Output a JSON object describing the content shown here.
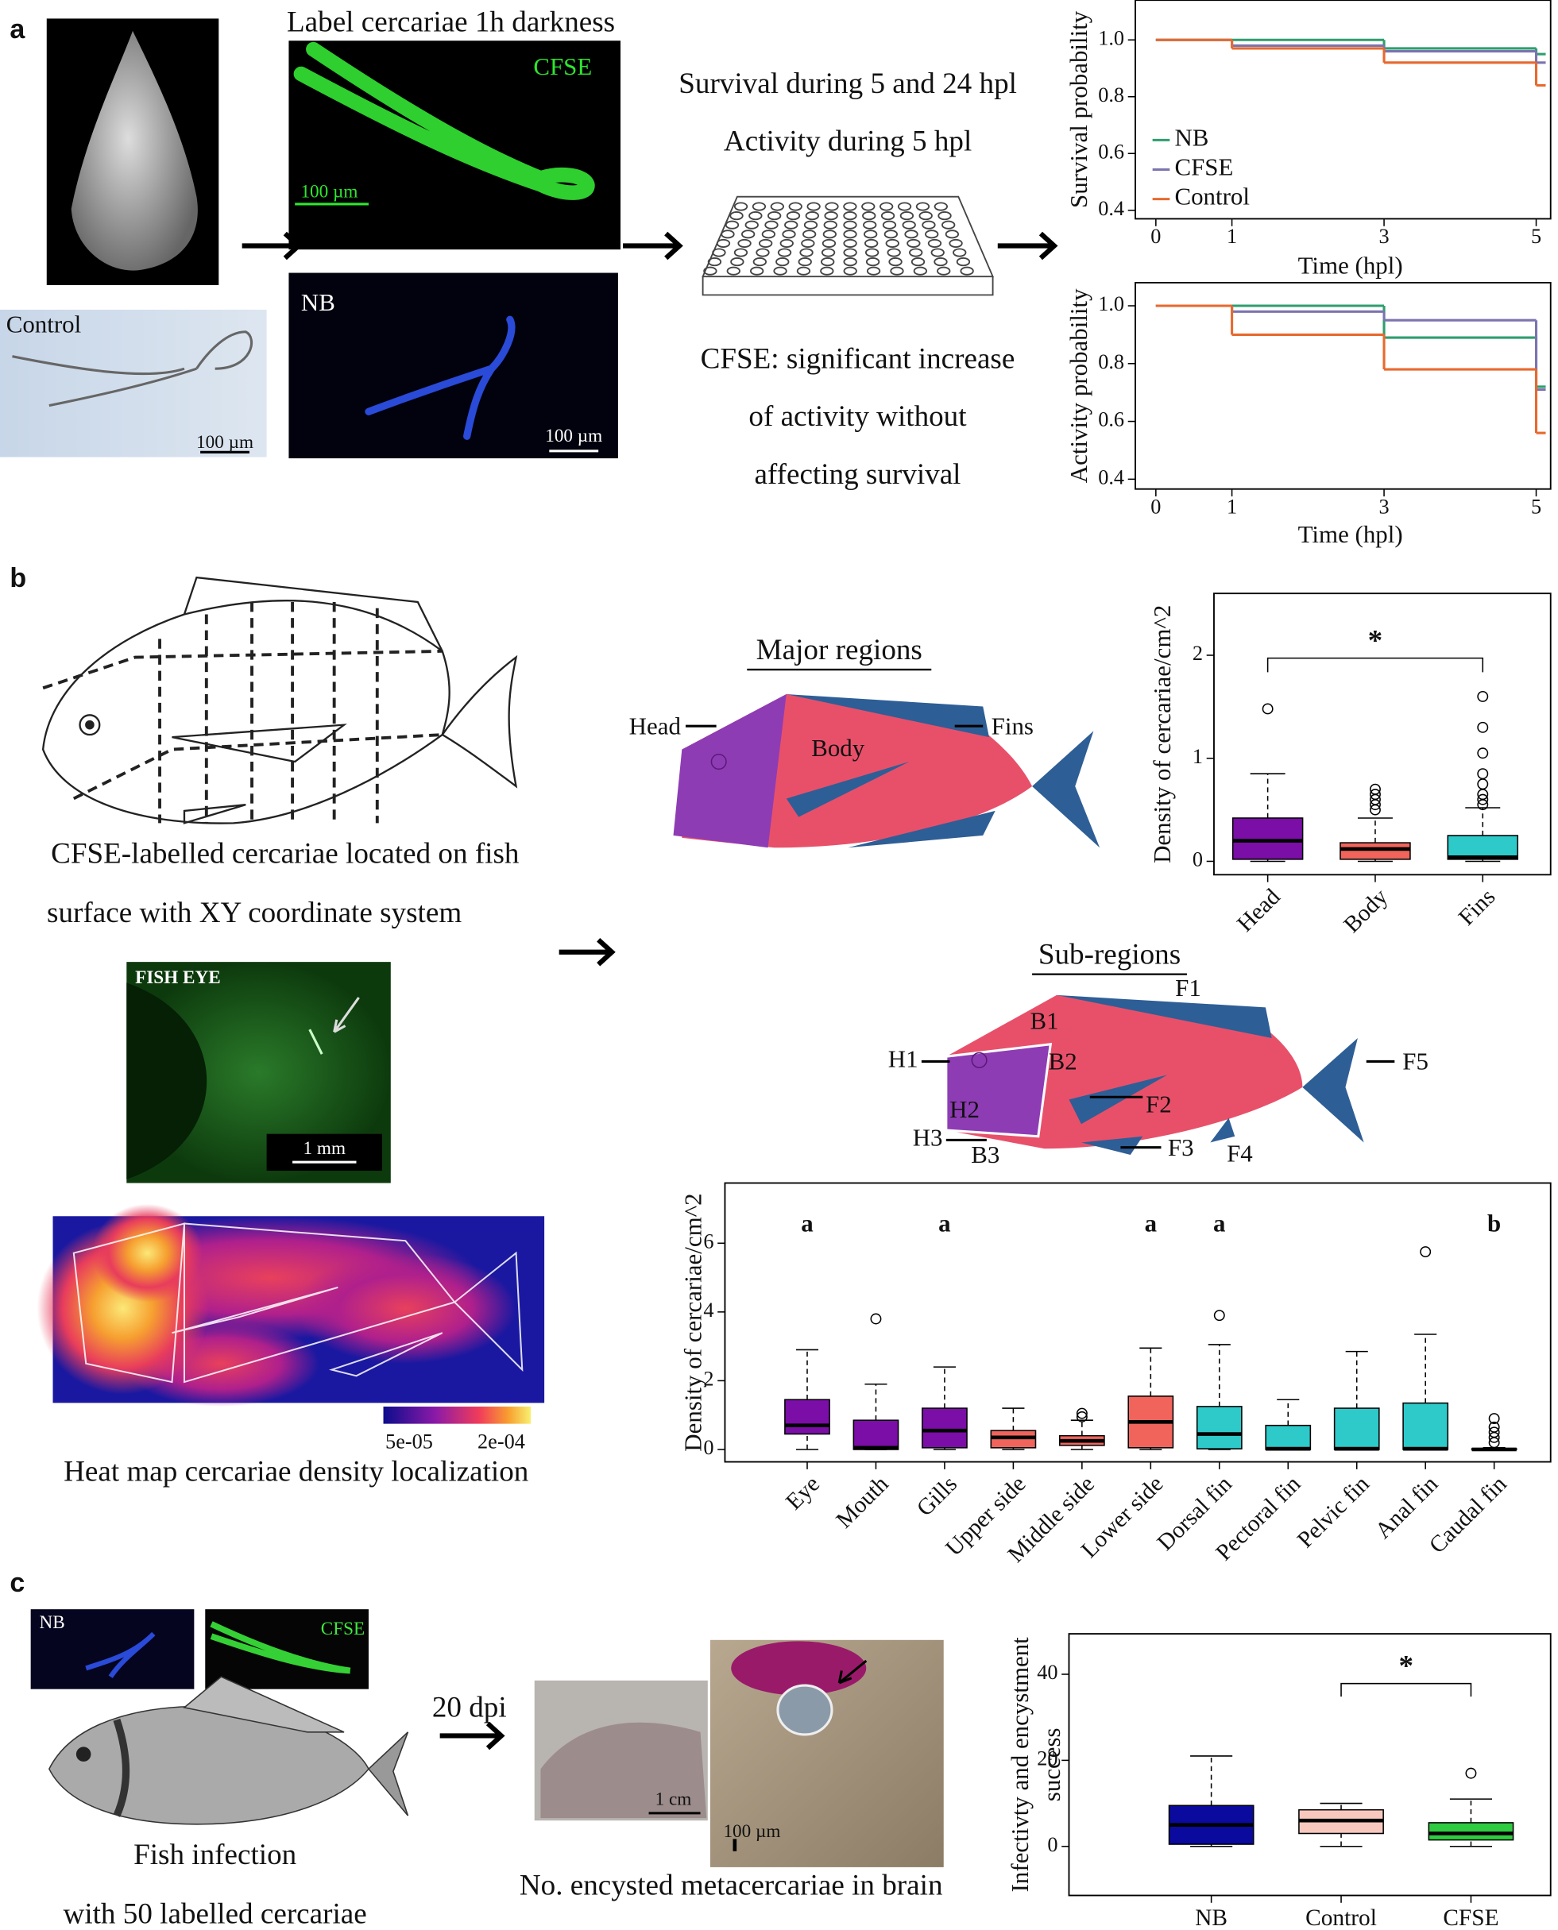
{
  "panel_labels": {
    "a": "a",
    "b": "b",
    "c": "c"
  },
  "panel_a": {
    "title": "Label cercariae 1h darkness",
    "cfse_tag": "CFSE",
    "nb_tag": "NB",
    "control_tag": "Control",
    "scale_cfse": "100 µm",
    "scale_nb": "100 µm",
    "scale_control": "100 µm",
    "assay_lines": [
      "Survival during 5 and 24 hpl",
      "Activity during 5 hpl"
    ],
    "result_lines": [
      "CFSE: significant increase",
      "of activity without",
      "affecting survival"
    ]
  },
  "panel_b": {
    "caption_lines": [
      "CFSE-labelled cercariae located on fish",
      "surface with XY coordinate system"
    ],
    "eye_tag": "FISH EYE",
    "eye_scale": "1 mm",
    "colorbar_ticks": [
      "5e-05",
      "2e-04"
    ],
    "heatmap_caption": "Heat map cercariae density localization",
    "major_title": "Major regions",
    "major_labels": [
      "Head",
      "Body",
      "Fins"
    ],
    "sub_title": "Sub-regions",
    "sub_labels": [
      "H1",
      "H2",
      "H3",
      "B1",
      "B2",
      "B3",
      "F1",
      "F2",
      "F3",
      "F4",
      "F5"
    ]
  },
  "panel_c": {
    "nb_tag": "NB",
    "cfse_tag": "CFSE",
    "arrow_label": "20 dpi",
    "scale_fish": "1 cm",
    "scale_brain": "100 µm",
    "caption_left": [
      "Fish infection",
      "with 50 labelled cercariae"
    ],
    "caption_mid": "No. encysted metacercariae in brain"
  },
  "chart_data": [
    {
      "type": "line",
      "step": "post",
      "ylabel": "Survival probability",
      "xlabel": "Time (hpl)",
      "x": [
        0,
        1,
        3,
        5
      ],
      "xlim": [
        -0.27,
        5.19
      ],
      "xticks": [
        0,
        1,
        3,
        5
      ],
      "ylim": [
        0.37,
        1.14
      ],
      "yticks": [
        0.4,
        0.6,
        0.8,
        {
          "value": 1,
          "label": "1.0"
        }
      ],
      "legend": "left",
      "series": [
        {
          "name": "NB",
          "color": "#2e9e6e",
          "values": [
            1,
            1,
            0.97,
            0.95
          ]
        },
        {
          "name": "CFSE",
          "color": "#7b74b0",
          "values": [
            1,
            0.98,
            0.96,
            0.92
          ]
        },
        {
          "name": "Control",
          "color": "#e8692e",
          "values": [
            1,
            0.97,
            0.92,
            0.84
          ]
        }
      ]
    },
    {
      "type": "line",
      "step": "post",
      "ylabel": "Activity probability",
      "xlabel": "Time (hpl)",
      "x": [
        0,
        1,
        3,
        5
      ],
      "xlim": [
        -0.27,
        5.19
      ],
      "xticks": [
        0,
        1,
        3,
        5
      ],
      "ylim": [
        0.366,
        1.08
      ],
      "yticks": [
        0.4,
        0.6,
        0.8,
        {
          "value": 1,
          "label": "1.0"
        }
      ],
      "series": [
        {
          "name": "NB",
          "color": "#2e9e6e",
          "values": [
            1,
            1,
            0.89,
            0.72
          ]
        },
        {
          "name": "CFSE",
          "color": "#7b74b0",
          "values": [
            1,
            0.98,
            0.95,
            0.71
          ]
        },
        {
          "name": "Control",
          "color": "#e8692e",
          "values": [
            1,
            0.9,
            0.78,
            0.56
          ]
        }
      ]
    },
    {
      "type": "box",
      "ylabel": "Density of cercariae/cm^2",
      "categories": [
        "Head",
        "Body",
        "Fins"
      ],
      "ylim": [
        -0.13,
        2.6
      ],
      "yticks": [
        0,
        1,
        2
      ],
      "xtick_rotation": 45,
      "colors": [
        "#7a0ea6",
        "#f0645c",
        "#2ec9c9"
      ],
      "boxes": [
        {
          "whislo": 0,
          "q1": 0.02,
          "med": 0.2,
          "q3": 0.42,
          "whishi": 0.85,
          "fliers": [
            1.48
          ]
        },
        {
          "whislo": 0,
          "q1": 0.02,
          "med": 0.12,
          "q3": 0.18,
          "whishi": 0.42,
          "fliers": [
            0.5,
            0.55,
            0.6,
            0.65,
            0.7
          ]
        },
        {
          "whislo": 0,
          "q1": 0.02,
          "med": 0.04,
          "q3": 0.25,
          "whishi": 0.52,
          "fliers": [
            0.55,
            0.6,
            0.65,
            0.75,
            0.85,
            1.05,
            1.3,
            1.6
          ]
        }
      ],
      "significance": {
        "between": [
          "Head",
          "Fins"
        ],
        "label": "*"
      }
    },
    {
      "type": "box",
      "ylabel": "Density of cercariae/cm^2",
      "categories": [
        "Eye",
        "Mouth",
        "Gills",
        "Upper side",
        "Middle side",
        "Lower side",
        "Dorsal fin",
        "Pectoral fin",
        "Pelvic fin",
        "Anal fin",
        "Caudal fin"
      ],
      "ylim": [
        -0.36,
        7.75
      ],
      "yticks": [
        0,
        2,
        4,
        6
      ],
      "xtick_rotation": 45,
      "colors": [
        "#7a0ea6",
        "#7a0ea6",
        "#7a0ea6",
        "#f0645c",
        "#f0645c",
        "#f0645c",
        "#2ec9c9",
        "#2ec9c9",
        "#2ec9c9",
        "#2ec9c9",
        "#2ec9c9"
      ],
      "group_labels": [
        "a",
        null,
        "a",
        null,
        null,
        "a",
        "a",
        null,
        null,
        null,
        "b"
      ],
      "boxes": [
        {
          "whislo": 0,
          "q1": 0.45,
          "med": 0.7,
          "q3": 1.45,
          "whishi": 2.9,
          "fliers": []
        },
        {
          "whislo": 0,
          "q1": 0,
          "med": 0.05,
          "q3": 0.85,
          "whishi": 1.9,
          "fliers": [
            3.8
          ]
        },
        {
          "whislo": 0,
          "q1": 0.05,
          "med": 0.55,
          "q3": 1.2,
          "whishi": 2.4,
          "fliers": []
        },
        {
          "whislo": 0,
          "q1": 0.05,
          "med": 0.35,
          "q3": 0.55,
          "whishi": 1.2,
          "fliers": []
        },
        {
          "whislo": 0,
          "q1": 0.12,
          "med": 0.25,
          "q3": 0.4,
          "whishi": 0.85,
          "fliers": [
            0.95,
            1.05
          ]
        },
        {
          "whislo": 0,
          "q1": 0.05,
          "med": 0.8,
          "q3": 1.55,
          "whishi": 2.95,
          "fliers": []
        },
        {
          "whislo": 0,
          "q1": 0.02,
          "med": 0.45,
          "q3": 1.25,
          "whishi": 3.05,
          "fliers": [
            3.9
          ]
        },
        {
          "whislo": 0,
          "q1": 0,
          "med": 0.02,
          "q3": 0.7,
          "whishi": 1.45,
          "fliers": []
        },
        {
          "whislo": 0,
          "q1": 0,
          "med": 0.02,
          "q3": 1.2,
          "whishi": 2.85,
          "fliers": []
        },
        {
          "whislo": 0,
          "q1": 0,
          "med": 0.02,
          "q3": 1.35,
          "whishi": 3.35,
          "fliers": [
            5.75
          ]
        },
        {
          "whislo": 0,
          "q1": 0,
          "med": 0,
          "q3": 0.02,
          "whishi": 0.05,
          "fliers": [
            0.2,
            0.35,
            0.5,
            0.65,
            0.9
          ]
        }
      ]
    },
    {
      "type": "box",
      "ylabel": [
        "Infectivty and encystment",
        "success"
      ],
      "categories": [
        "NB",
        "Control",
        "CFSE"
      ],
      "ylim": [
        -11.4,
        49.4
      ],
      "yticks": [
        0,
        20,
        40
      ],
      "colors": [
        "#0a0a9e",
        "#f8c8bf",
        "#2ecc40"
      ],
      "boxes": [
        {
          "whislo": 0,
          "q1": 0.5,
          "med": 5,
          "q3": 9.5,
          "whishi": 21,
          "fliers": []
        },
        {
          "whislo": 0,
          "q1": 3,
          "med": 6,
          "q3": 8.5,
          "whishi": 10,
          "fliers": []
        },
        {
          "whislo": 0,
          "q1": 1.5,
          "med": 3,
          "q3": 5.5,
          "whishi": 11,
          "fliers": [
            17
          ]
        }
      ],
      "significance": {
        "between": [
          "Control",
          "CFSE"
        ],
        "label": "*"
      }
    }
  ]
}
